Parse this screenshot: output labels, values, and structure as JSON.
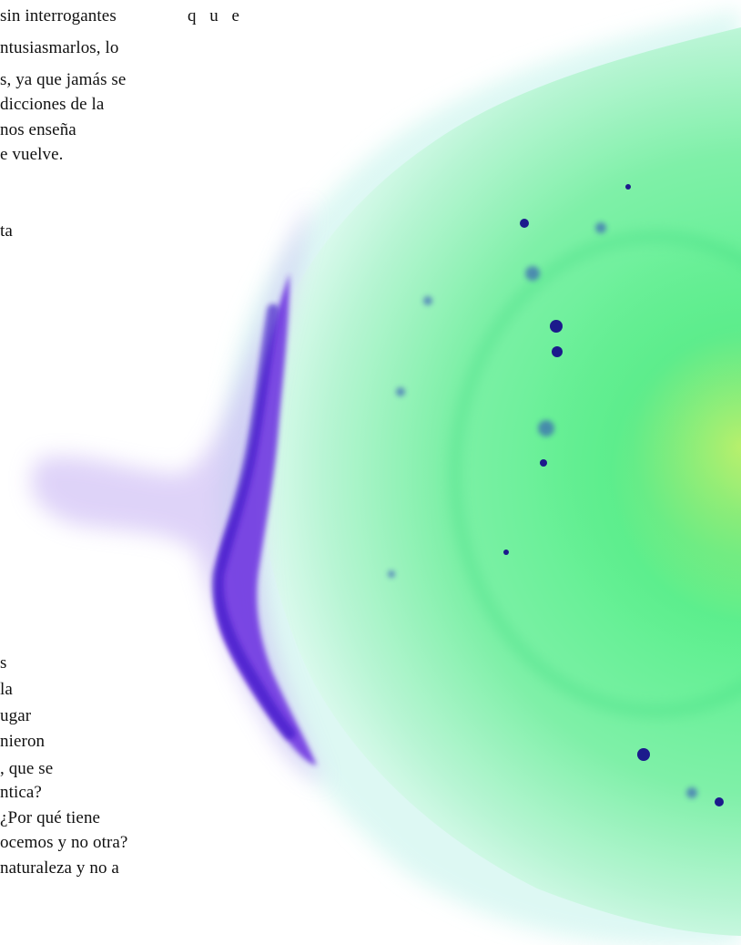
{
  "page": {
    "background": "#ffffff",
    "text_color": "#111111"
  },
  "text": {
    "top_right_fragment": "q u e",
    "upper_lines": [
      "sin interrogantes",
      "ntusiasmarlos, lo",
      "s, ya que jamás se",
      "dicciones de la",
      "nos enseña",
      "e vuelve."
    ],
    "mid_fragment": "ta",
    "lower_lines": [
      "s",
      "la",
      "ugar",
      "nieron",
      ", que se",
      "ntica?",
      "¿Por qué tiene",
      "ocemos y no otra?",
      "naturaleza y no a"
    ]
  },
  "image": {
    "subject": "nebula",
    "colors": {
      "glow_green": "#5cf08e",
      "glow_core": "#c8f070",
      "rim_purple": "#5a22d8",
      "halo_violet": "#b89cf0",
      "knot_blue": "#1a1a8c",
      "outer_cyan": "#c6f4ee"
    }
  }
}
